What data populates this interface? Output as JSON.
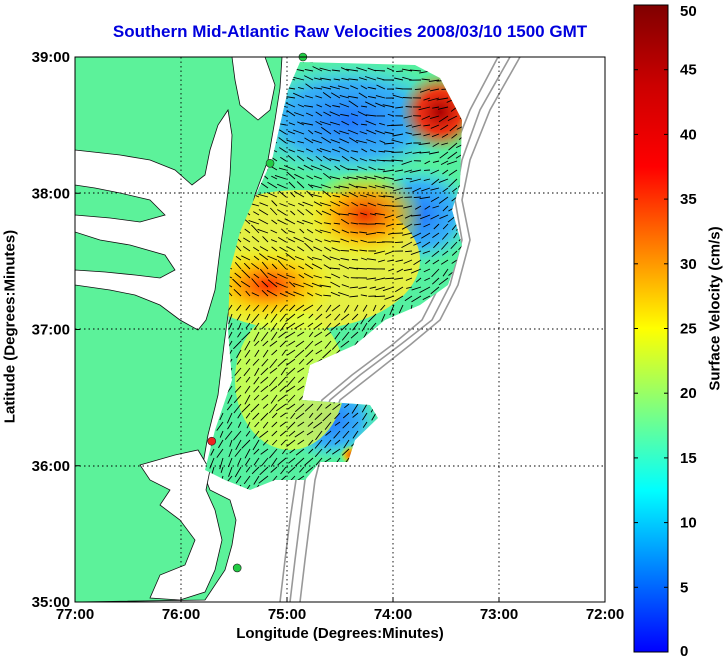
{
  "chart_data": {
    "type": "heatmap",
    "title": "Southern Mid-Atlantic Raw Velocities 2008/03/10 1500 GMT",
    "xlabel": "Longitude (Degrees:Minutes)",
    "ylabel": "Latitude (Degrees:Minutes)",
    "x_ticks": [
      "77:00",
      "76:00",
      "75:00",
      "74:00",
      "73:00",
      "72:00"
    ],
    "y_ticks": [
      "39:00",
      "38:00",
      "37:00",
      "36:00",
      "35:00"
    ],
    "xlim": [
      -77,
      -72
    ],
    "ylim": [
      35,
      39
    ],
    "grid": true,
    "colorbar": {
      "label": "Surface Velocity (cm/s)",
      "range": [
        0,
        50
      ],
      "ticks": [
        "50",
        "45",
        "40",
        "35",
        "30",
        "25",
        "20",
        "15",
        "10",
        "5",
        "0"
      ]
    },
    "stations": [
      {
        "lon": -74.85,
        "lat": 39.0,
        "color": "#22cc44"
      },
      {
        "lon": -75.16,
        "lat": 38.22,
        "color": "#22cc44"
      },
      {
        "lon": -75.71,
        "lat": 36.18,
        "color": "#ee2222"
      },
      {
        "lon": -75.47,
        "lat": 35.25,
        "color": "#22cc44"
      }
    ],
    "velocity_hotspots": [
      {
        "lon": -75.6,
        "lat": 37.25,
        "speed": 38
      },
      {
        "lon": -74.25,
        "lat": 37.75,
        "speed": 40
      },
      {
        "lon": -73.55,
        "lat": 38.75,
        "speed": 48
      },
      {
        "lon": -74.5,
        "lat": 36.2,
        "speed": 35
      }
    ]
  }
}
